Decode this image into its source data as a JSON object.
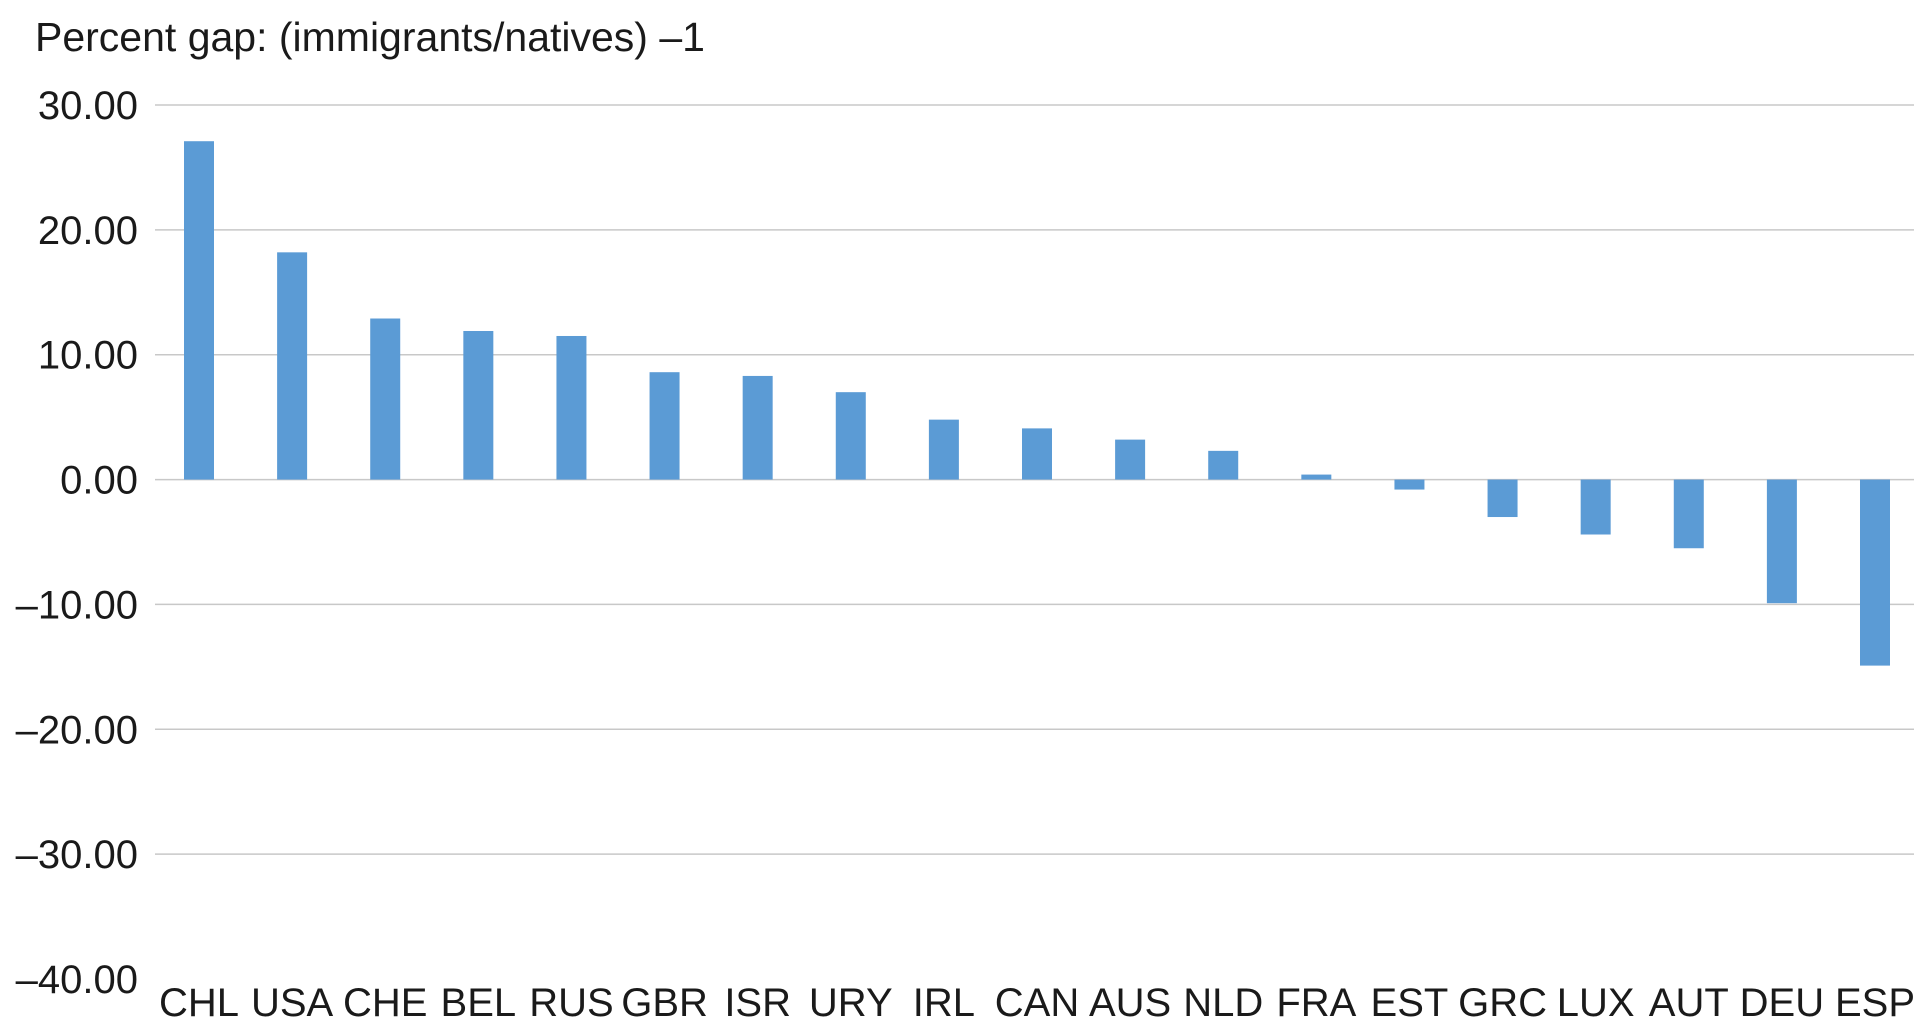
{
  "chart_data": {
    "type": "bar",
    "ylabel": "Percent gap: (immigrants/natives) –1",
    "categories": [
      "CHL",
      "USA",
      "CHE",
      "BEL",
      "RUS",
      "GBR",
      "ISR",
      "URY",
      "IRL",
      "CAN",
      "AUS",
      "NLD",
      "FRA",
      "EST",
      "GRC",
      "LUX",
      "AUT",
      "DEU",
      "ESP"
    ],
    "values": [
      27.1,
      18.2,
      12.9,
      11.9,
      11.5,
      8.6,
      8.3,
      7.0,
      4.8,
      4.1,
      3.2,
      2.3,
      0.4,
      -0.8,
      -3.0,
      -4.4,
      -5.5,
      -9.9,
      -14.9
    ],
    "ylim": [
      -40,
      30
    ],
    "yticks": [
      30,
      20,
      10,
      0,
      -10,
      -20,
      -30,
      -40
    ],
    "ytick_labels": [
      "30.00",
      "20.00",
      "10.00",
      "0.00",
      "–10.00",
      "–20.00",
      "–30.00",
      "–40.00"
    ],
    "grid": true,
    "colors": {
      "bar": "#5b9bd5",
      "grid": "#c8c8c8"
    }
  }
}
